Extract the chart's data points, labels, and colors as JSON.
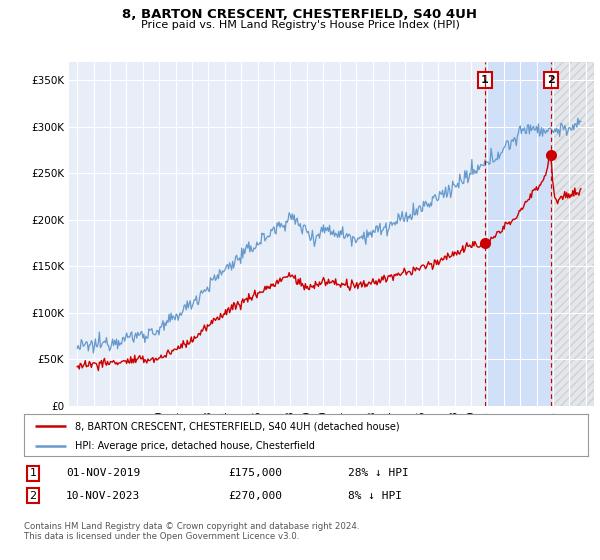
{
  "title": "8, BARTON CRESCENT, CHESTERFIELD, S40 4UH",
  "subtitle": "Price paid vs. HM Land Registry's House Price Index (HPI)",
  "ylabel_ticks": [
    "£0",
    "£50K",
    "£100K",
    "£150K",
    "£200K",
    "£250K",
    "£300K",
    "£350K"
  ],
  "ytick_vals": [
    0,
    50000,
    100000,
    150000,
    200000,
    250000,
    300000,
    350000
  ],
  "ylim": [
    0,
    370000
  ],
  "xlim_start": 1994.5,
  "xlim_end": 2026.5,
  "hpi_color": "#6699cc",
  "price_color": "#cc0000",
  "marker1_date": 2019.83,
  "marker1_price": 175000,
  "marker2_date": 2023.86,
  "marker2_price": 270000,
  "vline_color": "#cc0000",
  "plot_background": "#e8eef8",
  "highlight_color": "#d0e0f8",
  "hatch_color": "#bbbbbb",
  "grid_color": "#ffffff",
  "legend_entry1": "8, BARTON CRESCENT, CHESTERFIELD, S40 4UH (detached house)",
  "legend_entry2": "HPI: Average price, detached house, Chesterfield",
  "table_row1": [
    "1",
    "01-NOV-2019",
    "£175,000",
    "28% ↓ HPI"
  ],
  "table_row2": [
    "2",
    "10-NOV-2023",
    "£270,000",
    "8% ↓ HPI"
  ],
  "footnote": "Contains HM Land Registry data © Crown copyright and database right 2024.\nThis data is licensed under the Open Government Licence v3.0."
}
